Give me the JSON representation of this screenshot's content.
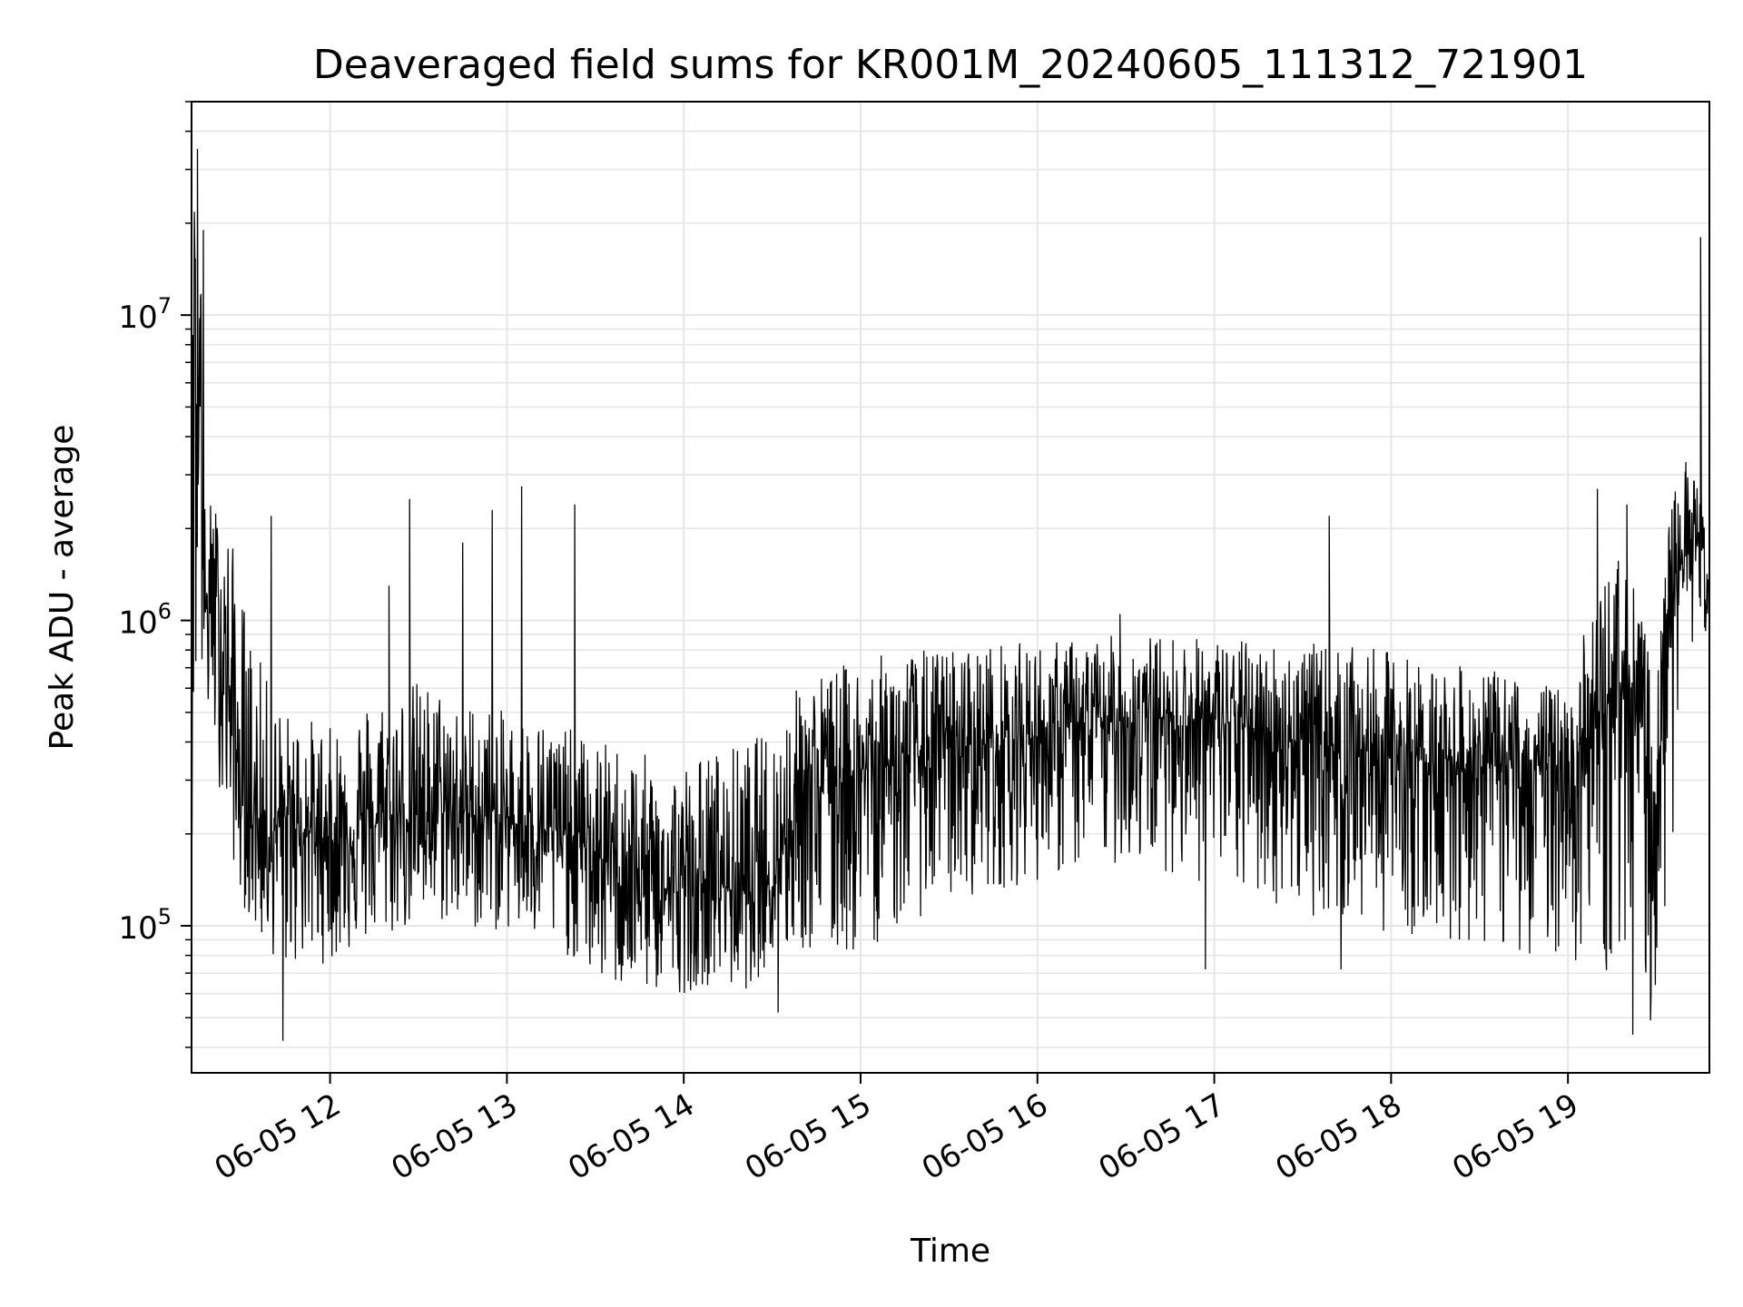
{
  "chart_data": {
    "type": "line",
    "title": "Deaveraged field sums for KR001M_20240605_111312_721901",
    "xlabel": "Time",
    "ylabel": "Peak ADU - average",
    "yscale": "log",
    "xlim": [
      "2024-06-05 11:13",
      "2024-06-05 19:48"
    ],
    "ylim": [
      33000,
      50000000
    ],
    "grid": true,
    "line_color": "#000000",
    "grid_color": "#e6e6e6",
    "x_ticks": [
      {
        "value": "2024-06-05 12:00",
        "label": "06-05 12"
      },
      {
        "value": "2024-06-05 13:00",
        "label": "06-05 13"
      },
      {
        "value": "2024-06-05 14:00",
        "label": "06-05 14"
      },
      {
        "value": "2024-06-05 15:00",
        "label": "06-05 15"
      },
      {
        "value": "2024-06-05 16:00",
        "label": "06-05 16"
      },
      {
        "value": "2024-06-05 17:00",
        "label": "06-05 17"
      },
      {
        "value": "2024-06-05 18:00",
        "label": "06-05 18"
      },
      {
        "value": "2024-06-05 19:00",
        "label": "06-05 19"
      }
    ],
    "y_ticks": [
      {
        "value": 100000,
        "base": "10",
        "exp": "5"
      },
      {
        "value": 1000000,
        "base": "10",
        "exp": "6"
      },
      {
        "value": 10000000,
        "base": "10",
        "exp": "7"
      }
    ],
    "series": [
      {
        "x": [
          "2024-06-05 11:13",
          "2024-06-05 11:14",
          "2024-06-05 11:15",
          "2024-06-05 11:16",
          "2024-06-05 11:17",
          "2024-06-05 11:20",
          "2024-06-05 11:25",
          "2024-06-05 11:30",
          "2024-06-05 11:35",
          "2024-06-05 11:40",
          "2024-06-05 11:45",
          "2024-06-05 11:50",
          "2024-06-05 12:00",
          "2024-06-05 12:10",
          "2024-06-05 12:20",
          "2024-06-05 12:30",
          "2024-06-05 12:40",
          "2024-06-05 12:50",
          "2024-06-05 13:00",
          "2024-06-05 13:10",
          "2024-06-05 13:20",
          "2024-06-05 13:30",
          "2024-06-05 13:40",
          "2024-06-05 13:50",
          "2024-06-05 14:00",
          "2024-06-05 14:10",
          "2024-06-05 14:20",
          "2024-06-05 14:30",
          "2024-06-05 14:40",
          "2024-06-05 14:50",
          "2024-06-05 15:00",
          "2024-06-05 15:15",
          "2024-06-05 15:30",
          "2024-06-05 15:45",
          "2024-06-05 16:00",
          "2024-06-05 16:15",
          "2024-06-05 16:30",
          "2024-06-05 16:45",
          "2024-06-05 17:00",
          "2024-06-05 17:15",
          "2024-06-05 17:30",
          "2024-06-05 17:45",
          "2024-06-05 18:00",
          "2024-06-05 18:15",
          "2024-06-05 18:30",
          "2024-06-05 18:45",
          "2024-06-05 19:00",
          "2024-06-05 19:10",
          "2024-06-05 19:20",
          "2024-06-05 19:30",
          "2024-06-05 19:35",
          "2024-06-05 19:40",
          "2024-06-05 19:45",
          "2024-06-05 19:48"
        ],
        "y": [
          1000000,
          35000000,
          1200000,
          19000000,
          1000000,
          1300000,
          700000,
          250000,
          220000,
          200000,
          230000,
          210000,
          190000,
          210000,
          220000,
          230000,
          240000,
          230000,
          220000,
          210000,
          200000,
          170000,
          150000,
          130000,
          130000,
          140000,
          130000,
          150000,
          280000,
          300000,
          320000,
          350000,
          380000,
          400000,
          420000,
          450000,
          470000,
          480000,
          470000,
          440000,
          400000,
          380000,
          360000,
          350000,
          340000,
          330000,
          330000,
          450000,
          700000,
          250000,
          1300000,
          1600000,
          2000000,
          1200000
        ],
        "envelope_high": [
          2800000,
          35000000,
          2500000,
          19000000,
          2500000,
          2500000,
          2200000,
          1300000,
          800000,
          600000,
          500000,
          500000,
          450000,
          550000,
          600000,
          650000,
          600000,
          550000,
          500000,
          500000,
          450000,
          400000,
          400000,
          350000,
          350000,
          380000,
          400000,
          450000,
          650000,
          700000,
          750000,
          800000,
          820000,
          850000,
          850000,
          880000,
          900000,
          900000,
          880000,
          860000,
          850000,
          820000,
          800000,
          720000,
          700000,
          650000,
          600000,
          1300000,
          1800000,
          600000,
          2500000,
          3300000,
          2800000,
          1400000
        ],
        "envelope_low": [
          190000,
          230000,
          600000,
          400000,
          500000,
          400000,
          200000,
          120000,
          90000,
          80000,
          70000,
          75000,
          75000,
          85000,
          90000,
          100000,
          100000,
          95000,
          95000,
          85000,
          80000,
          65000,
          60000,
          60000,
          60000,
          65000,
          60000,
          75000,
          80000,
          75000,
          80000,
          100000,
          120000,
          130000,
          140000,
          150000,
          160000,
          150000,
          130000,
          120000,
          110000,
          100000,
          95000,
          90000,
          85000,
          80000,
          80000,
          60000,
          80000,
          55000,
          140000,
          800000,
          900000,
          900000
        ]
      }
    ],
    "spikes": [
      {
        "x": "2024-06-05 11:15",
        "y": 35000000
      },
      {
        "x": "2024-06-05 11:17",
        "y": 19000000
      },
      {
        "x": "2024-06-05 11:40",
        "y": 2200000
      },
      {
        "x": "2024-06-05 11:44",
        "y": 42000
      },
      {
        "x": "2024-06-05 12:20",
        "y": 1300000
      },
      {
        "x": "2024-06-05 12:27",
        "y": 2500000
      },
      {
        "x": "2024-06-05 12:45",
        "y": 1800000
      },
      {
        "x": "2024-06-05 12:55",
        "y": 2300000
      },
      {
        "x": "2024-06-05 13:05",
        "y": 2750000
      },
      {
        "x": "2024-06-05 13:23",
        "y": 2400000
      },
      {
        "x": "2024-06-05 14:32",
        "y": 52000
      },
      {
        "x": "2024-06-05 16:28",
        "y": 1050000
      },
      {
        "x": "2024-06-05 16:57",
        "y": 72000
      },
      {
        "x": "2024-06-05 17:39",
        "y": 2200000
      },
      {
        "x": "2024-06-05 17:43",
        "y": 72000
      },
      {
        "x": "2024-06-05 19:10",
        "y": 2700000
      },
      {
        "x": "2024-06-05 19:20",
        "y": 2400000
      },
      {
        "x": "2024-06-05 19:22",
        "y": 44000
      },
      {
        "x": "2024-06-05 19:28",
        "y": 49000
      },
      {
        "x": "2024-06-05 19:40",
        "y": 3300000
      },
      {
        "x": "2024-06-05 19:45",
        "y": 18000000
      }
    ]
  }
}
